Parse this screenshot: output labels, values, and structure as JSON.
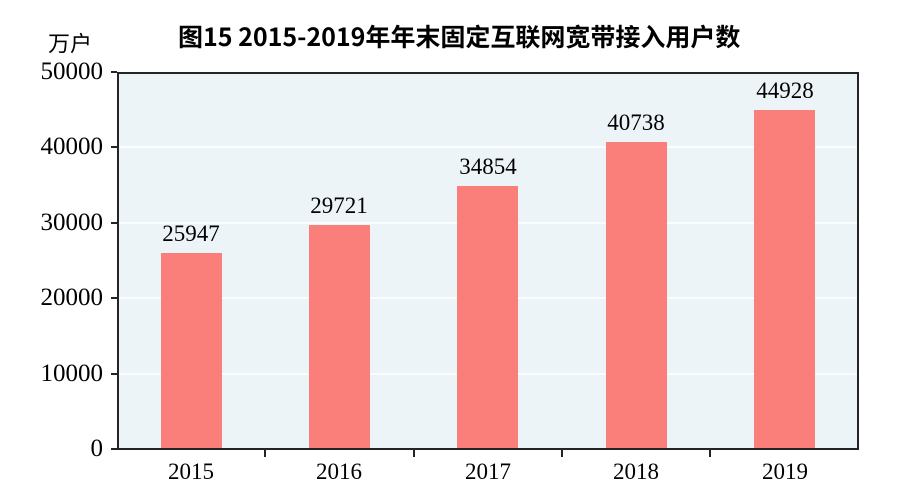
{
  "page": {
    "background": "#FFFFFF"
  },
  "chart_data": {
    "type": "bar",
    "title": "图15 2015-2019年年末固定互联网宽带接入用户数",
    "unit_label": "万户",
    "categories": [
      "2015",
      "2016",
      "2017",
      "2018",
      "2019"
    ],
    "values": [
      25947,
      29721,
      34854,
      40738,
      44928
    ],
    "value_labels": [
      "25947",
      "29721",
      "34854",
      "40738",
      "44928"
    ],
    "xlabel": "",
    "ylabel": "万户",
    "ylim": [
      0,
      50000
    ],
    "y_ticks": [
      0,
      10000,
      20000,
      30000,
      40000,
      50000
    ],
    "y_tick_labels": [
      "0",
      "10000",
      "20000",
      "30000",
      "40000",
      "50000"
    ],
    "grid": "horizontal",
    "legend": "none",
    "colors": {
      "bar": "#FA7E79",
      "plot_background": "#ECF4F8",
      "gridline": "#FAFCFD",
      "axis": "#242424",
      "text": "#000000"
    }
  }
}
